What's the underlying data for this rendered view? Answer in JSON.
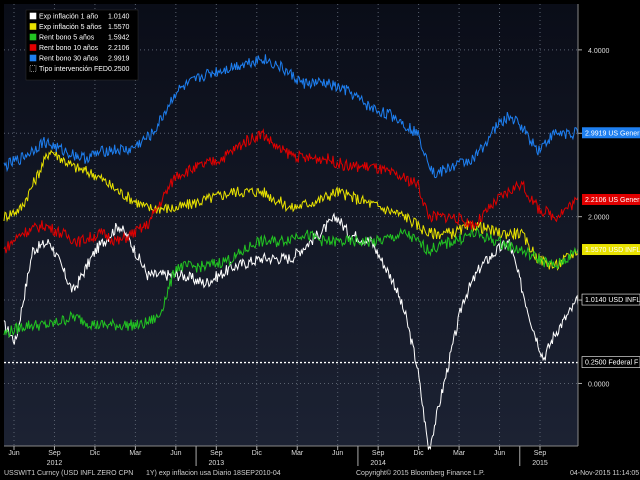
{
  "chart_data": {
    "type": "line",
    "title": "",
    "ylim": [
      -0.75,
      4.55
    ],
    "y_ticks": [
      4.0,
      3.0,
      2.0,
      1.0,
      0.0
    ],
    "y_tick_labels": [
      "4.0000",
      "",
      "2.0000",
      "",
      "0.0000"
    ],
    "x_month_labels": [
      "Jun",
      "Sep",
      "Dic",
      "Mar",
      "Jun",
      "Sep",
      "Dic",
      "Mar",
      "Jun",
      "Sep",
      "Dic",
      "Mar",
      "Jun",
      "Sep"
    ],
    "x_year_labels": [
      "2012",
      "2013",
      "2014",
      "2015"
    ],
    "colors": {
      "background": "#000000",
      "plot_bg_top": "#0a0d18",
      "plot_bg_bottom": "#1c2233",
      "grid": "#5a6270"
    },
    "series": [
      {
        "name": "Exp inflación 1 año",
        "last": "1.0140",
        "tag": "1.0140 USD INFL",
        "color": "#ffffff",
        "points": [
          [
            0,
            0.7
          ],
          [
            0.02,
            0.5
          ],
          [
            0.05,
            1.6
          ],
          [
            0.08,
            1.7
          ],
          [
            0.12,
            1.1
          ],
          [
            0.16,
            1.6
          ],
          [
            0.2,
            1.9
          ],
          [
            0.22,
            1.7
          ],
          [
            0.25,
            1.3
          ],
          [
            0.28,
            1.3
          ],
          [
            0.31,
            1.3
          ],
          [
            0.35,
            1.2
          ],
          [
            0.4,
            1.4
          ],
          [
            0.45,
            1.5
          ],
          [
            0.5,
            1.5
          ],
          [
            0.55,
            1.8
          ],
          [
            0.58,
            2.0
          ],
          [
            0.6,
            1.8
          ],
          [
            0.64,
            1.7
          ],
          [
            0.68,
            1.2
          ],
          [
            0.7,
            0.8
          ],
          [
            0.72,
            0.2
          ],
          [
            0.74,
            -0.8
          ],
          [
            0.76,
            -0.2
          ],
          [
            0.8,
            1.0
          ],
          [
            0.83,
            1.4
          ],
          [
            0.86,
            1.6
          ],
          [
            0.88,
            1.7
          ],
          [
            0.9,
            1.2
          ],
          [
            0.92,
            0.7
          ],
          [
            0.94,
            0.3
          ],
          [
            0.96,
            0.6
          ],
          [
            0.98,
            0.8
          ],
          [
            1.0,
            1.0
          ]
        ]
      },
      {
        "name": "Exp inflación 5 años",
        "last": "1.5570",
        "tag": "1.5570 USD INFL",
        "color": "#e8e200",
        "points": [
          [
            0,
            2.0
          ],
          [
            0.03,
            2.1
          ],
          [
            0.08,
            2.8
          ],
          [
            0.12,
            2.6
          ],
          [
            0.16,
            2.5
          ],
          [
            0.2,
            2.3
          ],
          [
            0.25,
            2.1
          ],
          [
            0.3,
            2.1
          ],
          [
            0.35,
            2.2
          ],
          [
            0.4,
            2.3
          ],
          [
            0.45,
            2.3
          ],
          [
            0.5,
            2.1
          ],
          [
            0.55,
            2.2
          ],
          [
            0.58,
            2.3
          ],
          [
            0.62,
            2.2
          ],
          [
            0.66,
            2.1
          ],
          [
            0.7,
            2.0
          ],
          [
            0.74,
            1.8
          ],
          [
            0.78,
            1.8
          ],
          [
            0.82,
            1.9
          ],
          [
            0.86,
            1.8
          ],
          [
            0.9,
            1.8
          ],
          [
            0.93,
            1.5
          ],
          [
            0.96,
            1.4
          ],
          [
            1.0,
            1.6
          ]
        ]
      },
      {
        "name": "Rent bono 5 años",
        "last": "1.5942",
        "tag": "",
        "color": "#22c322",
        "points": [
          [
            0,
            0.6
          ],
          [
            0.04,
            0.7
          ],
          [
            0.08,
            0.7
          ],
          [
            0.12,
            0.8
          ],
          [
            0.16,
            0.7
          ],
          [
            0.2,
            0.7
          ],
          [
            0.24,
            0.7
          ],
          [
            0.27,
            0.8
          ],
          [
            0.3,
            1.4
          ],
          [
            0.35,
            1.4
          ],
          [
            0.4,
            1.5
          ],
          [
            0.44,
            1.7
          ],
          [
            0.48,
            1.7
          ],
          [
            0.52,
            1.8
          ],
          [
            0.56,
            1.7
          ],
          [
            0.6,
            1.7
          ],
          [
            0.65,
            1.7
          ],
          [
            0.7,
            1.8
          ],
          [
            0.74,
            1.6
          ],
          [
            0.78,
            1.7
          ],
          [
            0.82,
            1.8
          ],
          [
            0.86,
            1.7
          ],
          [
            0.9,
            1.6
          ],
          [
            0.93,
            1.5
          ],
          [
            0.96,
            1.4
          ],
          [
            1.0,
            1.6
          ]
        ]
      },
      {
        "name": "Rent bono 10 años",
        "last": "2.2106",
        "tag": "2.2106 US Generi",
        "color": "#e00000",
        "points": [
          [
            0,
            1.6
          ],
          [
            0.03,
            1.8
          ],
          [
            0.07,
            1.9
          ],
          [
            0.1,
            1.8
          ],
          [
            0.13,
            1.7
          ],
          [
            0.17,
            1.8
          ],
          [
            0.2,
            1.7
          ],
          [
            0.25,
            1.9
          ],
          [
            0.3,
            2.5
          ],
          [
            0.34,
            2.6
          ],
          [
            0.38,
            2.7
          ],
          [
            0.42,
            2.9
          ],
          [
            0.45,
            3.0
          ],
          [
            0.48,
            2.8
          ],
          [
            0.52,
            2.7
          ],
          [
            0.56,
            2.7
          ],
          [
            0.6,
            2.6
          ],
          [
            0.64,
            2.6
          ],
          [
            0.68,
            2.5
          ],
          [
            0.72,
            2.4
          ],
          [
            0.74,
            2.0
          ],
          [
            0.78,
            2.0
          ],
          [
            0.82,
            1.9
          ],
          [
            0.86,
            2.2
          ],
          [
            0.88,
            2.3
          ],
          [
            0.9,
            2.4
          ],
          [
            0.93,
            2.1
          ],
          [
            0.96,
            2.0
          ],
          [
            1.0,
            2.2
          ]
        ]
      },
      {
        "name": "Rent bono 30 años",
        "last": "2.9919",
        "tag": "2.9919 US Generi",
        "color": "#1e7ff0",
        "points": [
          [
            0,
            2.6
          ],
          [
            0.03,
            2.7
          ],
          [
            0.07,
            2.9
          ],
          [
            0.1,
            2.8
          ],
          [
            0.14,
            2.7
          ],
          [
            0.18,
            2.8
          ],
          [
            0.22,
            2.8
          ],
          [
            0.26,
            3.0
          ],
          [
            0.3,
            3.5
          ],
          [
            0.35,
            3.7
          ],
          [
            0.4,
            3.8
          ],
          [
            0.45,
            3.9
          ],
          [
            0.48,
            3.8
          ],
          [
            0.52,
            3.6
          ],
          [
            0.56,
            3.6
          ],
          [
            0.6,
            3.5
          ],
          [
            0.64,
            3.3
          ],
          [
            0.68,
            3.2
          ],
          [
            0.72,
            3.0
          ],
          [
            0.75,
            2.5
          ],
          [
            0.78,
            2.6
          ],
          [
            0.82,
            2.7
          ],
          [
            0.86,
            3.1
          ],
          [
            0.88,
            3.2
          ],
          [
            0.9,
            3.1
          ],
          [
            0.93,
            2.8
          ],
          [
            0.96,
            3.0
          ],
          [
            1.0,
            3.0
          ]
        ]
      },
      {
        "name": "Tipo intervención FED",
        "last": "0.2500",
        "tag": "0.2500 Federal F",
        "color": "#ffffff",
        "dashed": true,
        "points": [
          [
            0,
            0.25
          ],
          [
            1.0,
            0.25
          ]
        ]
      }
    ]
  },
  "footer": {
    "left": "USSWIT1 Curncy (USD INFL ZERO CPN",
    "middle": "1Y) exp inflacion usa  Diario 18SEP2010-04",
    "copyright": "Copyright© 2015 Bloomberg Finance L.P.",
    "date": "04-Nov-2015 11:14:05"
  }
}
